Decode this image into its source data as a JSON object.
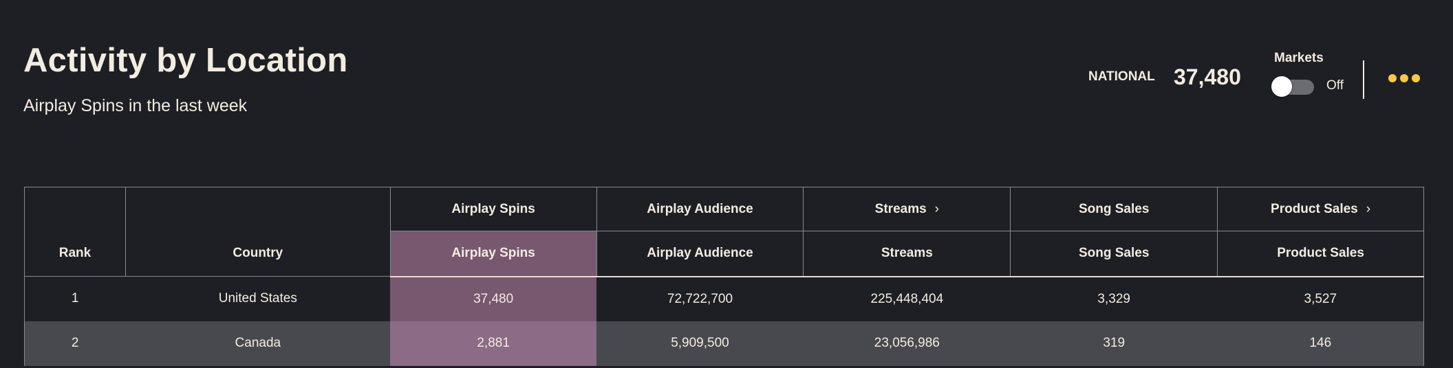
{
  "header": {
    "title": "Activity by Location",
    "subtitle": "Airplay Spins in the last week"
  },
  "summary": {
    "national_label": "NATIONAL",
    "national_value": "37,480",
    "markets_label": "Markets",
    "markets_toggle": "Off",
    "markets_on": false,
    "more_icon": "more-horizontal-icon",
    "accent": "#f7c746"
  },
  "table": {
    "groups": [
      {
        "label": "Airplay Spins",
        "expandable": false
      },
      {
        "label": "Airplay Audience",
        "expandable": false
      },
      {
        "label": "Streams",
        "expandable": true
      },
      {
        "label": "Song Sales",
        "expandable": false
      },
      {
        "label": "Product Sales",
        "expandable": true
      }
    ],
    "columns": [
      "Rank",
      "Country",
      "Airplay Spins",
      "Airplay Audience",
      "Streams",
      "Song Sales",
      "Product Sales"
    ],
    "highlight_color": "#77586f",
    "rows": [
      [
        "1",
        "United States",
        "37,480",
        "72,722,700",
        "225,448,404",
        "3,329",
        "3,527"
      ],
      [
        "2",
        "Canada",
        "2,881",
        "5,909,500",
        "23,056,986",
        "319",
        "146"
      ]
    ]
  }
}
